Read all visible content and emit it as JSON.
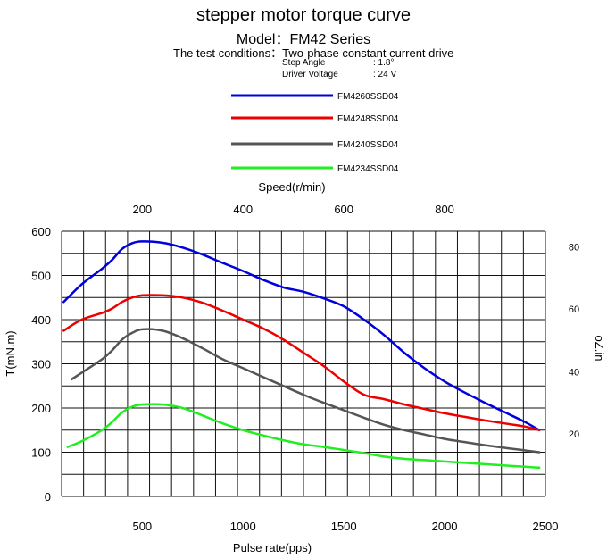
{
  "header": {
    "title": "stepper motor torque curve",
    "model": "Model：FM42 Series",
    "conditions": "The test conditions：Two-phase constant current drive",
    "step_angle_label": "Step Angle",
    "step_angle_value": ":  1.8°",
    "driver_voltage_label": "Driver  Voltage",
    "driver_voltage_value": ":  24 V"
  },
  "chart_data": {
    "type": "line",
    "title": "stepper motor torque curve",
    "xlabel": "Pulse rate(pps)",
    "ylabel": "T(mN.m)",
    "top_xlabel": "Speed(r/min)",
    "right_ylabel": "oZ.in",
    "xlim": [
      100,
      2500
    ],
    "ylim": [
      0,
      600
    ],
    "x_ticks": [
      "500",
      "1000",
      "1500",
      "2000",
      "2500"
    ],
    "x_tick_values": [
      500,
      1000,
      1500,
      2000,
      2500
    ],
    "y_ticks": [
      "0",
      "100",
      "200",
      "300",
      "400",
      "500",
      "600"
    ],
    "y_tick_values": [
      0,
      100,
      200,
      300,
      400,
      500,
      600
    ],
    "top_ticks": [
      "200",
      "400",
      "600",
      "800"
    ],
    "top_tick_values": [
      500,
      1000,
      1500,
      2000
    ],
    "right_ticks": [
      "20",
      "40",
      "60",
      "80"
    ],
    "right_tick_values": [
      141,
      282,
      424,
      565
    ],
    "grid": true,
    "legend_position": "top",
    "series": [
      {
        "name": "FM4260SSD04",
        "color": "#0000dd",
        "x": [
          110,
          200,
          300,
          350,
          400,
          450,
          500,
          600,
          700,
          800,
          900,
          1000,
          1100,
          1200,
          1300,
          1400,
          1500,
          1600,
          1700,
          1800,
          1900,
          2000,
          2100,
          2200,
          2300,
          2400,
          2470
        ],
        "y": [
          440,
          480,
          515,
          535,
          560,
          573,
          577,
          574,
          563,
          547,
          528,
          510,
          490,
          473,
          463,
          448,
          430,
          400,
          365,
          325,
          290,
          260,
          235,
          212,
          190,
          168,
          150
        ]
      },
      {
        "name": "FM4248SSD04",
        "color": "#ee0000",
        "x": [
          110,
          200,
          300,
          350,
          400,
          450,
          500,
          600,
          700,
          800,
          900,
          1000,
          1100,
          1200,
          1300,
          1400,
          1500,
          1600,
          1700,
          1800,
          1900,
          2000,
          2100,
          2200,
          2300,
          2400,
          2470
        ],
        "y": [
          375,
          400,
          415,
          425,
          440,
          450,
          455,
          455,
          450,
          438,
          420,
          400,
          380,
          355,
          325,
          295,
          260,
          230,
          220,
          208,
          198,
          188,
          180,
          172,
          165,
          158,
          150
        ]
      },
      {
        "name": "FM4240SSD04",
        "color": "#555555",
        "x": [
          150,
          200,
          300,
          350,
          400,
          450,
          500,
          600,
          700,
          800,
          900,
          1000,
          1100,
          1200,
          1300,
          1400,
          1500,
          1600,
          1700,
          1800,
          1900,
          2000,
          2100,
          2200,
          2300,
          2400,
          2470
        ],
        "y": [
          265,
          280,
          310,
          330,
          355,
          370,
          378,
          375,
          358,
          335,
          310,
          290,
          270,
          250,
          230,
          212,
          195,
          178,
          162,
          150,
          140,
          130,
          123,
          116,
          110,
          104,
          100
        ]
      },
      {
        "name": "FM4234SSD04",
        "color": "#22ee22",
        "x": [
          130,
          200,
          300,
          350,
          400,
          450,
          500,
          600,
          700,
          800,
          900,
          1000,
          1100,
          1200,
          1300,
          1400,
          1500,
          1600,
          1700,
          1800,
          1900,
          2000,
          2100,
          2200,
          2300,
          2400,
          2470
        ],
        "y": [
          112,
          125,
          150,
          168,
          190,
          203,
          208,
          208,
          200,
          183,
          165,
          150,
          138,
          127,
          118,
          112,
          105,
          98,
          90,
          85,
          82,
          79,
          76,
          73,
          70,
          67,
          65
        ]
      }
    ]
  }
}
